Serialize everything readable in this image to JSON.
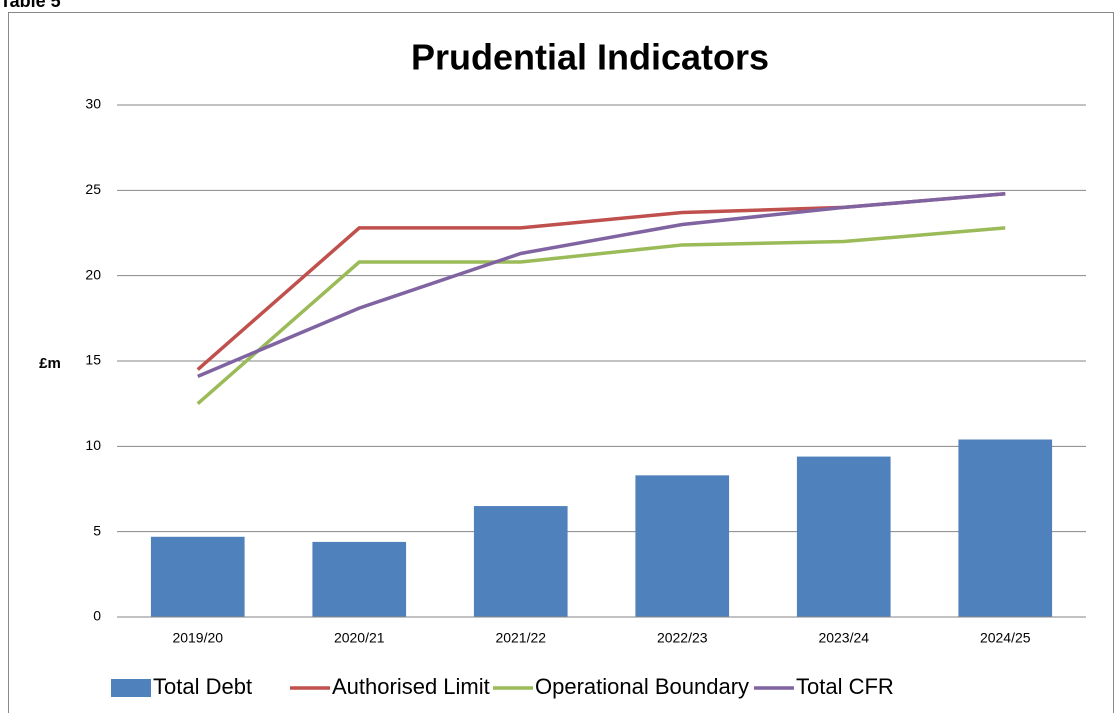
{
  "page_label": "Table 5",
  "chart_data": {
    "type": "bar",
    "title": "Prudential Indicators",
    "y_label": "£m",
    "categories": [
      "2019/20",
      "2020/21",
      "2021/22",
      "2022/23",
      "2023/24",
      "2024/25"
    ],
    "series": [
      {
        "name": "Total Debt",
        "type": "bar",
        "color": "#4f81bd",
        "values": [
          4.7,
          4.4,
          6.5,
          8.3,
          9.4,
          10.4
        ]
      },
      {
        "name": "Authorised Limit",
        "type": "line",
        "color": "#c0504d",
        "values": [
          14.5,
          22.8,
          22.8,
          23.7,
          24.0,
          24.8
        ]
      },
      {
        "name": "Operational Boundary",
        "type": "line",
        "color": "#9bbb59",
        "values": [
          12.5,
          20.8,
          20.8,
          21.8,
          22.0,
          22.8
        ]
      },
      {
        "name": "Total CFR",
        "type": "line",
        "color": "#8064a2",
        "values": [
          14.1,
          18.1,
          21.3,
          23.0,
          24.0,
          24.8
        ]
      }
    ],
    "ylim": [
      0,
      30
    ],
    "yticks": [
      0,
      5,
      10,
      15,
      20,
      25,
      30
    ],
    "grid": true,
    "legend": "bottom"
  }
}
